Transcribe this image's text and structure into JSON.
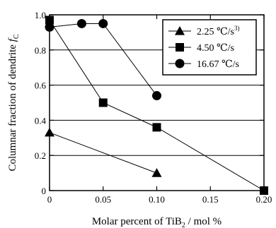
{
  "chart_data": {
    "type": "line",
    "xlabel": {
      "prefix": "Molar percent of TiB",
      "sub": "2",
      "suffix": " / mol %"
    },
    "ylabel": {
      "text": "Columnar fraction of dendrite  ",
      "symbol": "f",
      "sub": "C"
    },
    "xlim": [
      0,
      0.2
    ],
    "ylim": [
      0,
      1.0
    ],
    "xticks": [
      0,
      0.05,
      0.1,
      0.15,
      0.2
    ],
    "xtick_labels": [
      "0",
      "0.05",
      "0.10",
      "0.15",
      "0.20"
    ],
    "yticks": [
      0,
      0.2,
      0.4,
      0.6,
      0.8,
      1.0
    ],
    "ytick_labels": [
      "0",
      "0.2",
      "0.4",
      "0.6",
      "0.8",
      "1.0"
    ],
    "grid": "horizontal",
    "legend_position": "top-right",
    "series": [
      {
        "name": "2.25 ℃/s",
        "superscript": "3)",
        "marker": "triangle",
        "x": [
          0,
          0.1
        ],
        "y": [
          0.33,
          0.1
        ]
      },
      {
        "name": "4.50 ℃/s",
        "marker": "square",
        "x": [
          0,
          0.05,
          0.1,
          0.2
        ],
        "y": [
          0.97,
          0.5,
          0.36,
          0.0
        ]
      },
      {
        "name": "16.67 ℃/s",
        "marker": "circle",
        "x": [
          0,
          0.03,
          0.05,
          0.1
        ],
        "y": [
          0.93,
          0.95,
          0.95,
          0.54
        ]
      }
    ]
  }
}
